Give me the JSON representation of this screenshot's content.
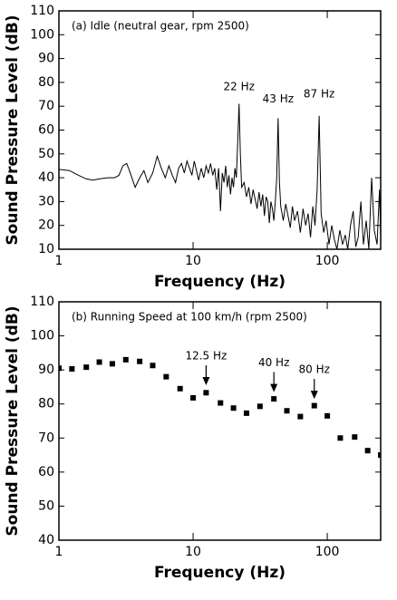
{
  "chart_data": [
    {
      "type": "line",
      "title": "(a) Idle (neutral gear, rpm 2500)",
      "x_label": "Frequency (Hz)",
      "y_label": "Sound Pressure Level (dB)",
      "xscale": "log",
      "xlim": [
        1,
        250
      ],
      "xticks": [
        1,
        10,
        100
      ],
      "ylim": [
        10,
        110
      ],
      "yticks": [
        10,
        20,
        30,
        40,
        50,
        60,
        70,
        80,
        90,
        100,
        110
      ],
      "series": [
        {
          "name": "Idle",
          "color": "#000000",
          "x": [
            1,
            1.2,
            1.4,
            1.6,
            1.8,
            2,
            2.3,
            2.6,
            2.8,
            3,
            3.2,
            3.4,
            3.7,
            4,
            4.3,
            4.6,
            5,
            5.4,
            5.8,
            6.2,
            6.6,
            7,
            7.4,
            7.8,
            8.2,
            8.6,
            9,
            9.4,
            9.8,
            10.2,
            10.6,
            11,
            11.5,
            12,
            12.5,
            13,
            13.5,
            14,
            14.5,
            15,
            15.5,
            16,
            16.5,
            17,
            17.5,
            18,
            18.5,
            19,
            19.5,
            20,
            20.5,
            21,
            21.5,
            22,
            22.5,
            23,
            24,
            25,
            26,
            27,
            28,
            29,
            30,
            31,
            32,
            33,
            34,
            35,
            36,
            37,
            38,
            39,
            40,
            41,
            42,
            43,
            44,
            45,
            47,
            49,
            51,
            53,
            55,
            57,
            60,
            63,
            66,
            69,
            72,
            75,
            78,
            81,
            84,
            87,
            90,
            94,
            98,
            103,
            108,
            113,
            118,
            124,
            130,
            136,
            142,
            149,
            156,
            163,
            170,
            178,
            186,
            195,
            204,
            214,
            224,
            235,
            245,
            250
          ],
          "values": [
            43.5,
            43,
            41,
            39.5,
            39,
            39.5,
            40,
            40,
            41,
            45,
            46,
            42,
            36,
            40,
            43,
            38,
            42,
            49,
            44,
            40,
            45,
            41,
            38,
            44,
            46,
            42,
            47,
            44,
            41,
            47,
            43,
            39,
            44,
            40,
            45,
            42,
            46,
            41,
            44,
            35,
            44,
            26,
            42,
            38,
            45,
            36,
            41,
            33,
            40,
            36,
            44,
            40,
            55,
            71,
            50,
            36,
            38,
            32,
            36,
            29,
            35,
            31,
            27,
            34,
            28,
            33,
            24,
            32,
            30,
            21,
            30,
            27,
            22,
            30,
            40,
            65,
            38,
            28,
            22,
            29,
            24,
            19,
            28,
            22,
            26,
            17,
            27,
            20,
            25,
            15,
            28,
            20,
            35,
            66,
            25,
            17,
            22,
            12,
            20,
            14,
            10,
            18,
            12,
            16,
            10,
            20,
            26,
            11,
            15,
            30,
            12,
            22,
            10,
            40,
            18,
            12,
            35,
            15
          ]
        }
      ],
      "annotations": [
        {
          "text": "22 Hz",
          "x": 22,
          "y": 78
        },
        {
          "text": "43 Hz",
          "x": 43,
          "y": 73
        },
        {
          "text": "87 Hz",
          "x": 87,
          "y": 75
        }
      ]
    },
    {
      "type": "scatter",
      "title": "(b) Running Speed at 100 km/h (rpm 2500)",
      "x_label": "Frequency (Hz)",
      "y_label": "Sound Pressure Level (dB)",
      "xscale": "log",
      "xlim": [
        1,
        250
      ],
      "xticks": [
        1,
        10,
        100
      ],
      "ylim": [
        40,
        110
      ],
      "yticks": [
        40,
        50,
        60,
        70,
        80,
        90,
        100,
        110
      ],
      "series": [
        {
          "name": "Running",
          "color": "#000000",
          "x": [
            1,
            1.25,
            1.6,
            2,
            2.5,
            3.15,
            4,
            5,
            6.3,
            8,
            10,
            12.5,
            16,
            20,
            25,
            31.5,
            40,
            50,
            63,
            80,
            100,
            125,
            160,
            200,
            250
          ],
          "values": [
            90.5,
            90.3,
            90.8,
            92.3,
            91.8,
            93,
            92.5,
            91.3,
            88,
            84.5,
            81.8,
            83.3,
            80.3,
            78.8,
            77.3,
            79.3,
            81.5,
            78,
            76.3,
            79.5,
            76.5,
            70,
            70.3,
            66.3,
            65
          ]
        }
      ],
      "annotations": [
        {
          "text": "12.5 Hz",
          "x": 12.5,
          "y": 85.5
        },
        {
          "text": "40 Hz",
          "x": 40,
          "y": 83.5
        },
        {
          "text": "80 Hz",
          "x": 80,
          "y": 81.5
        }
      ]
    }
  ]
}
